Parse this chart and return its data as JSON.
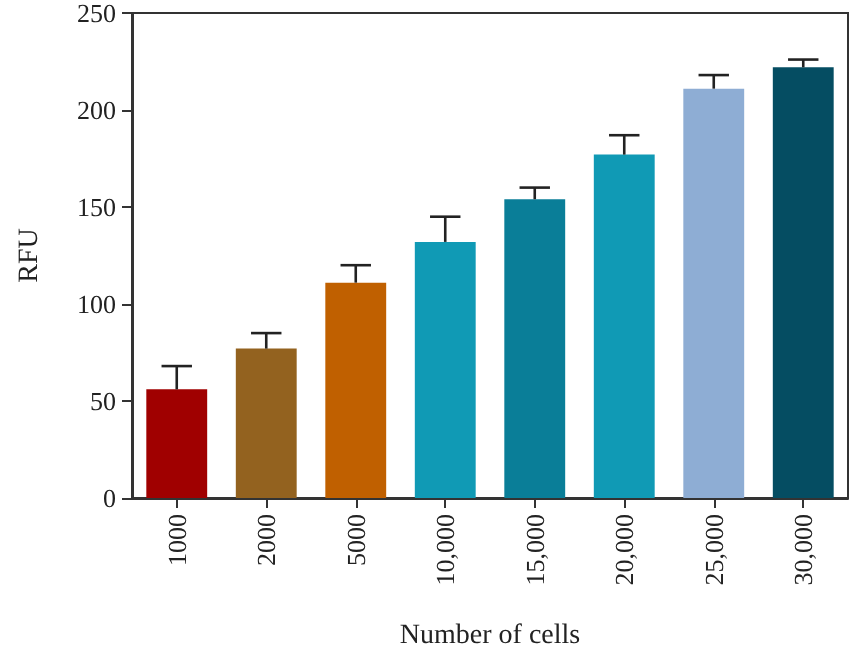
{
  "chart_data": {
    "type": "bar",
    "xlabel": "Number of cells",
    "ylabel": "RFU",
    "categories": [
      "1000",
      "2000",
      "5000",
      "10,000",
      "15,000",
      "20,000",
      "25,000",
      "30,000"
    ],
    "values": [
      56,
      77,
      111,
      132,
      154,
      177,
      211,
      222
    ],
    "colors": [
      "#a00000",
      "#93621f",
      "#c06000",
      "#109ab5",
      "#0a7e98",
      "#109ab5",
      "#8eadd4",
      "#054d62"
    ],
    "errors": [
      [
        56,
        68
      ],
      [
        77,
        85
      ],
      [
        111,
        120
      ],
      [
        132,
        145
      ],
      [
        154,
        160
      ],
      [
        177,
        187
      ],
      [
        211,
        218
      ],
      [
        222,
        226
      ]
    ],
    "ylim": [
      0,
      250
    ],
    "yticks": [
      0,
      50,
      100,
      150,
      200,
      250
    ],
    "grid": false
  }
}
